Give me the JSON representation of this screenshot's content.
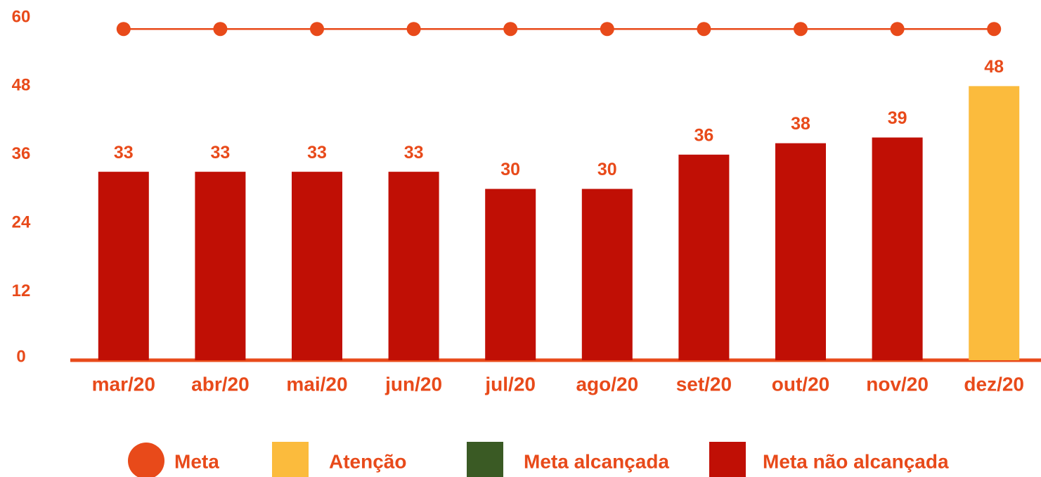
{
  "chart_data": {
    "type": "bar",
    "categories": [
      "mar/20",
      "abr/20",
      "mai/20",
      "jun/20",
      "jul/20",
      "ago/20",
      "set/20",
      "out/20",
      "nov/20",
      "dez/20"
    ],
    "values": [
      33,
      33,
      33,
      33,
      30,
      30,
      36,
      38,
      39,
      48
    ],
    "colors": [
      "#c00f05",
      "#c00f05",
      "#c00f05",
      "#c00f05",
      "#c00f05",
      "#c00f05",
      "#c00f05",
      "#c00f05",
      "#c00f05",
      "#fbbb3d"
    ],
    "line": {
      "color": "#e84a1a",
      "values": [
        58,
        58,
        58,
        58,
        58,
        58,
        58,
        58,
        58,
        58
      ]
    },
    "ylim": [
      0,
      60
    ],
    "yticks": [
      0,
      12,
      24,
      36,
      48,
      60
    ],
    "grid": false,
    "legend": [
      {
        "label": "Meta",
        "color": "#e84a1a",
        "marker": "circle"
      },
      {
        "label": "Atenção",
        "color": "#fbbb3d",
        "marker": "square"
      },
      {
        "label": "Meta alcançada",
        "color": "#3a5a24",
        "marker": "square"
      },
      {
        "label": "Meta não alcançada",
        "color": "#c00f05",
        "marker": "square"
      }
    ]
  }
}
